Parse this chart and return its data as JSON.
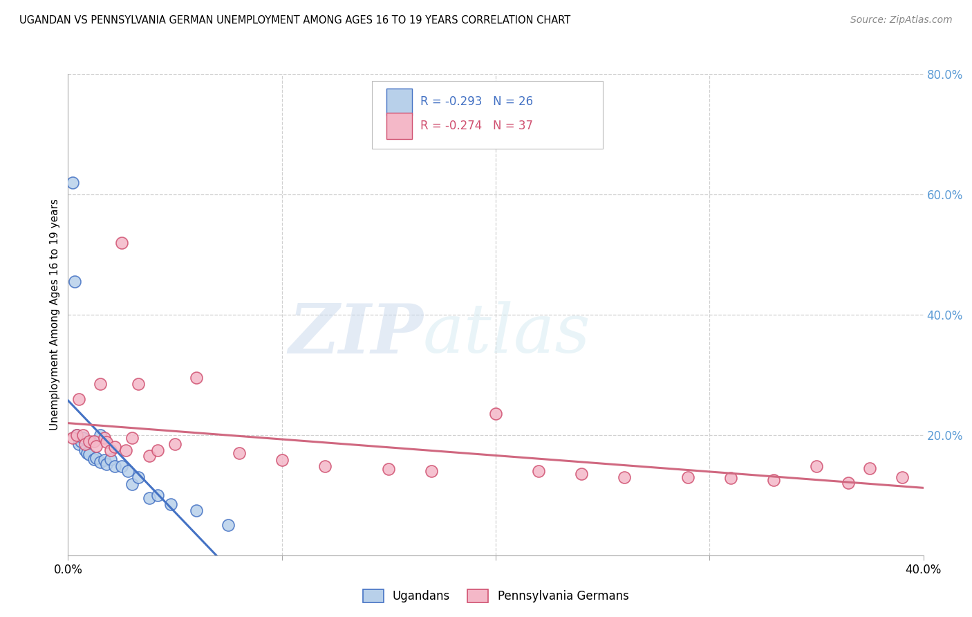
{
  "title": "UGANDAN VS PENNSYLVANIA GERMAN UNEMPLOYMENT AMONG AGES 16 TO 19 YEARS CORRELATION CHART",
  "source": "Source: ZipAtlas.com",
  "ylabel": "Unemployment Among Ages 16 to 19 years",
  "legend_label_1": "Ugandans",
  "legend_label_2": "Pennsylvania Germans",
  "legend_r1": "R = -0.293",
  "legend_n1": "N = 26",
  "legend_r2": "R = -0.274",
  "legend_n2": "N = 37",
  "color_ugandan_fill": "#b8d0ea",
  "color_ugandan_edge": "#4472c4",
  "color_penn_fill": "#f4b8c8",
  "color_penn_edge": "#d05070",
  "color_ugandan_line": "#4472c4",
  "color_penn_line": "#d06880",
  "color_right_axis": "#5b9bd5",
  "xlim": [
    0.0,
    0.4
  ],
  "ylim": [
    0.0,
    0.8
  ],
  "x_ticks": [
    0.0,
    0.1,
    0.2,
    0.3,
    0.4
  ],
  "x_tick_labels": [
    "0.0%",
    "",
    "",
    "",
    "40.0%"
  ],
  "y_ticks_right": [
    0.2,
    0.4,
    0.6,
    0.8
  ],
  "ugandan_x": [
    0.002,
    0.003,
    0.004,
    0.005,
    0.006,
    0.007,
    0.008,
    0.009,
    0.01,
    0.012,
    0.013,
    0.015,
    0.015,
    0.017,
    0.018,
    0.02,
    0.022,
    0.025,
    0.028,
    0.03,
    0.033,
    0.038,
    0.042,
    0.048,
    0.06,
    0.075
  ],
  "ugandan_y": [
    0.62,
    0.455,
    0.2,
    0.185,
    0.19,
    0.195,
    0.175,
    0.17,
    0.168,
    0.16,
    0.162,
    0.155,
    0.2,
    0.158,
    0.152,
    0.16,
    0.148,
    0.148,
    0.14,
    0.118,
    0.13,
    0.095,
    0.1,
    0.085,
    0.075,
    0.05
  ],
  "penn_x": [
    0.002,
    0.004,
    0.005,
    0.007,
    0.008,
    0.01,
    0.012,
    0.013,
    0.015,
    0.017,
    0.018,
    0.02,
    0.022,
    0.025,
    0.027,
    0.03,
    0.033,
    0.038,
    0.042,
    0.05,
    0.06,
    0.08,
    0.1,
    0.12,
    0.15,
    0.17,
    0.2,
    0.22,
    0.24,
    0.26,
    0.29,
    0.31,
    0.33,
    0.35,
    0.365,
    0.375,
    0.39
  ],
  "penn_y": [
    0.195,
    0.2,
    0.26,
    0.2,
    0.185,
    0.19,
    0.19,
    0.182,
    0.285,
    0.195,
    0.188,
    0.175,
    0.18,
    0.52,
    0.175,
    0.195,
    0.285,
    0.165,
    0.175,
    0.185,
    0.295,
    0.17,
    0.158,
    0.148,
    0.143,
    0.14,
    0.235,
    0.14,
    0.135,
    0.13,
    0.13,
    0.128,
    0.125,
    0.148,
    0.12,
    0.145,
    0.13
  ],
  "watermark_zip": "ZIP",
  "watermark_atlas": "atlas",
  "background_color": "#ffffff",
  "grid_color": "#d0d0d0"
}
